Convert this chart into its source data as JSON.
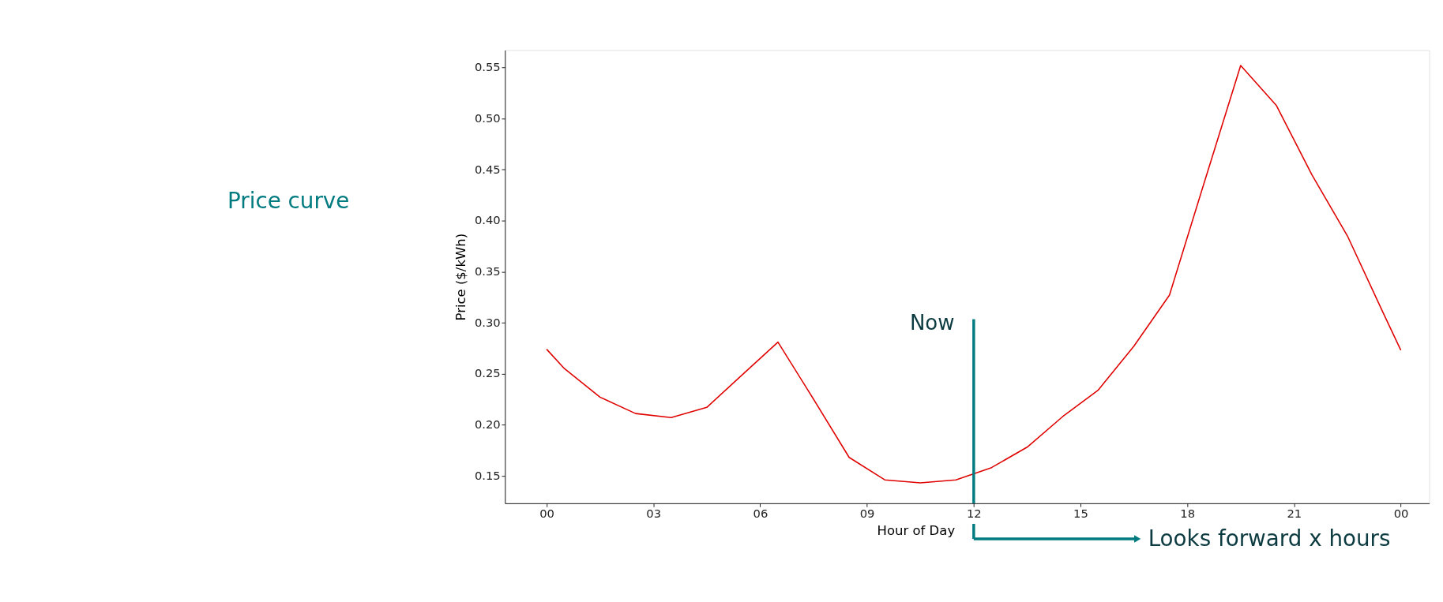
{
  "chart_data": {
    "type": "line",
    "xlabel": "Hour of Day",
    "ylabel": "Price ($/kWh)",
    "x": [
      0,
      0.5,
      1.5,
      2.5,
      3.5,
      4.5,
      5.5,
      6.5,
      7.5,
      8.5,
      9.5,
      10.5,
      11.5,
      12.5,
      13.5,
      14.5,
      15.5,
      16.5,
      17.5,
      18.5,
      19.5,
      20.5,
      21.5,
      22.5,
      23.5,
      24
    ],
    "series": [
      {
        "color": "#e00000",
        "values": [
          0.274,
          0.255,
          0.227,
          0.211,
          0.207,
          0.217,
          0.249,
          0.281,
          0.225,
          0.168,
          0.146,
          0.143,
          0.146,
          0.158,
          0.178,
          0.208,
          0.234,
          0.277,
          0.327,
          0.44,
          0.552,
          0.513,
          0.445,
          0.385,
          0.31,
          0.273
        ]
      }
    ],
    "xlim": [
      -1.17,
      24.8
    ],
    "ylim": [
      0.123,
      0.567
    ],
    "xticks": [
      {
        "value": 0,
        "label": "00"
      },
      {
        "value": 3,
        "label": "03"
      },
      {
        "value": 6,
        "label": "06"
      },
      {
        "value": 9,
        "label": "09"
      },
      {
        "value": 12,
        "label": "12"
      },
      {
        "value": 15,
        "label": "15"
      },
      {
        "value": 18,
        "label": "18"
      },
      {
        "value": 21,
        "label": "21"
      },
      {
        "value": 24,
        "label": "00"
      }
    ],
    "yticks": [
      {
        "value": 0.15,
        "label": "0.15"
      },
      {
        "value": 0.2,
        "label": "0.20"
      },
      {
        "value": 0.25,
        "label": "0.25"
      },
      {
        "value": 0.3,
        "label": "0.30"
      },
      {
        "value": 0.35,
        "label": "0.35"
      },
      {
        "value": 0.4,
        "label": "0.40"
      },
      {
        "value": 0.45,
        "label": "0.45"
      },
      {
        "value": 0.5,
        "label": "0.50"
      },
      {
        "value": 0.55,
        "label": "0.55"
      }
    ],
    "ref_lines": [
      {
        "axis": "x",
        "value": 12,
        "label": "Now",
        "color": "#007b80"
      }
    ],
    "annotations": [
      "Price curve",
      "Looks forward x hours"
    ],
    "grid": false
  }
}
